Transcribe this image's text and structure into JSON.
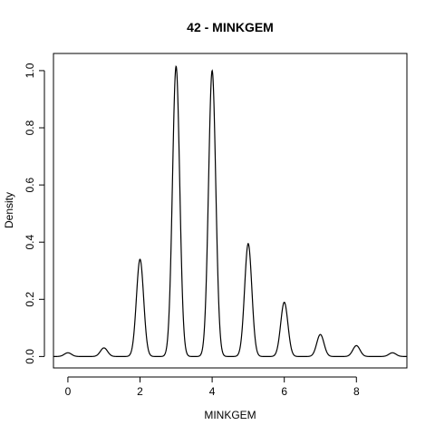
{
  "chart_data": {
    "type": "line",
    "title": "42 - MINKGEM",
    "xlabel": "MINKGEM",
    "ylabel": "Density",
    "xlim": [
      -0.4,
      9.4
    ],
    "ylim": [
      -0.04,
      1.06
    ],
    "x_ticks": [
      0,
      2,
      4,
      6,
      8
    ],
    "y_ticks": [
      0.0,
      0.2,
      0.4,
      0.6,
      0.8,
      1.0
    ],
    "x_tick_labels": [
      "0",
      "2",
      "4",
      "6",
      "8"
    ],
    "y_tick_labels": [
      "0.0",
      "0.2",
      "0.4",
      "0.6",
      "0.8",
      "1.0"
    ],
    "x_range_of_curve": [
      -0.4,
      9.4
    ],
    "peaks": [
      {
        "x": 0,
        "density": 0.013
      },
      {
        "x": 1,
        "density": 0.03
      },
      {
        "x": 2,
        "density": 0.34
      },
      {
        "x": 3,
        "density": 1.015
      },
      {
        "x": 4,
        "density": 1.0
      },
      {
        "x": 5,
        "density": 0.395
      },
      {
        "x": 6,
        "density": 0.19
      },
      {
        "x": 7,
        "density": 0.077
      },
      {
        "x": 8,
        "density": 0.038
      },
      {
        "x": 9,
        "density": 0.013
      }
    ],
    "grid": false,
    "legend": "none",
    "colors": {
      "line": "#000000",
      "axis": "#000000",
      "background": "#ffffff"
    }
  }
}
